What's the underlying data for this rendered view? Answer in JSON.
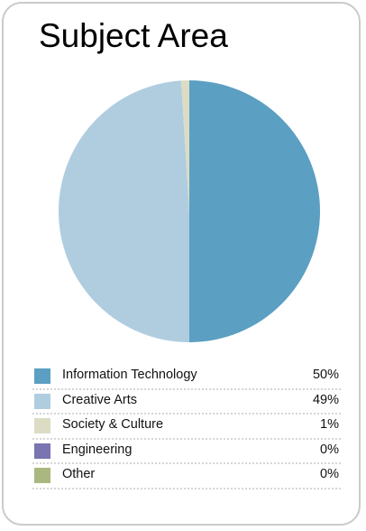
{
  "title": "Subject Area",
  "chart_data": {
    "type": "pie",
    "title": "Subject Area",
    "slices": [
      {
        "label": "Information Technology",
        "value": 50,
        "display": "50%",
        "color": "#5b9fc2"
      },
      {
        "label": "Creative Arts",
        "value": 49,
        "display": "49%",
        "color": "#b0cde0"
      },
      {
        "label": "Society & Culture",
        "value": 1,
        "display": "1%",
        "color": "#dcdcc4"
      },
      {
        "label": "Engineering",
        "value": 0,
        "display": "0%",
        "color": "#7a74b0"
      },
      {
        "label": "Other",
        "value": 0,
        "display": "0%",
        "color": "#aab880"
      }
    ],
    "legend_position": "bottom"
  }
}
